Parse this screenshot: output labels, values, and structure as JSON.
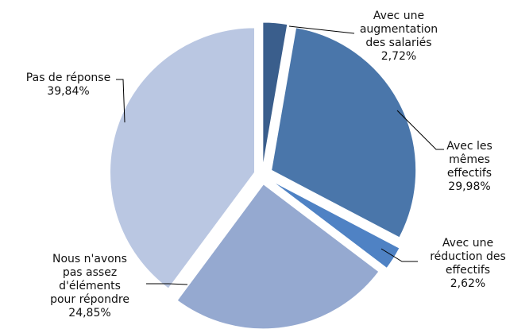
{
  "chart_data": {
    "type": "pie",
    "title": "",
    "start_angle_deg": 0,
    "direction": "clockwise",
    "exploded": true,
    "slices": [
      {
        "label_lines": [
          "Avec une",
          "augmentation",
          "des salariés"
        ],
        "value_label": "2,72%",
        "value": 2.72,
        "color": "#3a5e8c"
      },
      {
        "label_lines": [
          "Avec les",
          "mêmes",
          "effectifs"
        ],
        "value_label": "29,98%",
        "value": 29.98,
        "color": "#4a76aa"
      },
      {
        "label_lines": [
          "Avec une",
          "réduction des",
          "effectifs"
        ],
        "value_label": "2,62%",
        "value": 2.62,
        "color": "#4f82c4"
      },
      {
        "label_lines": [
          "Nous n'avons",
          "pas assez",
          "d'éléments",
          "pour répondre"
        ],
        "value_label": "24,85%",
        "value": 24.85,
        "color": "#95a9d0"
      },
      {
        "label_lines": [
          "Pas de réponse"
        ],
        "value_label": "39,84%",
        "value": 39.84,
        "color": "#bac7e2"
      }
    ]
  }
}
